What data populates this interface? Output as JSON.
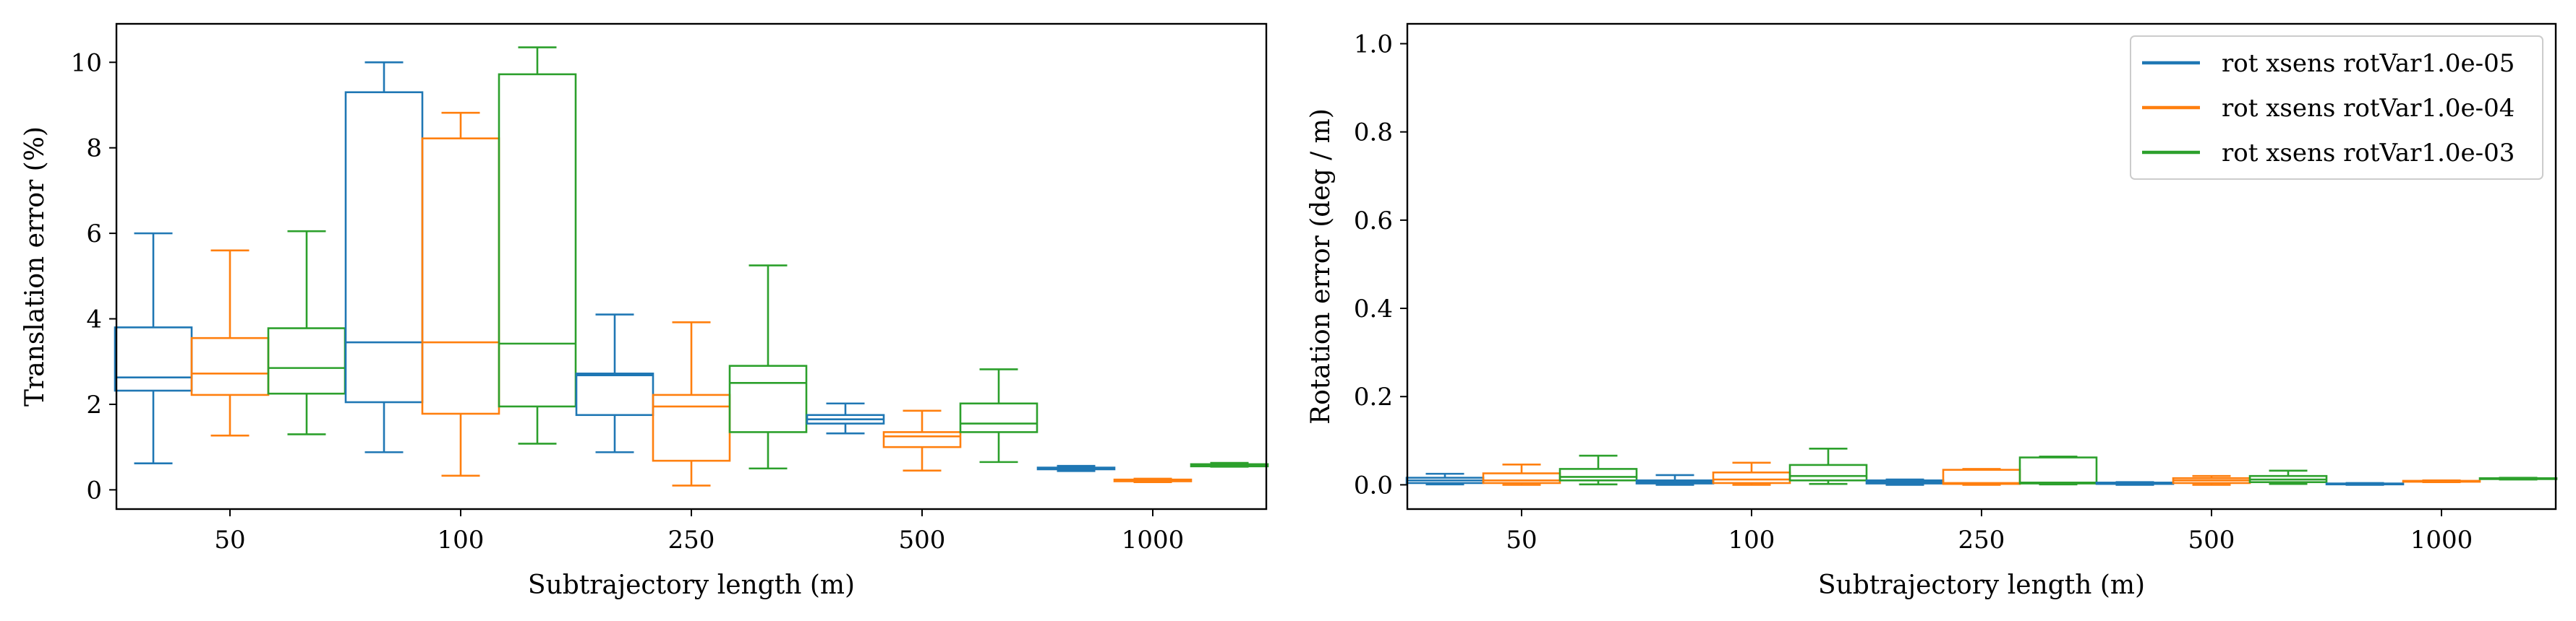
{
  "colors": {
    "series": [
      "#1f77b4",
      "#ff7f0e",
      "#2ca02c"
    ],
    "axis": "#000000",
    "background": "#ffffff"
  },
  "chart_data": [
    {
      "type": "box",
      "xlabel": "Subtrajectory length (m)",
      "ylabel": "Translation error (%)",
      "ylim": [
        -0.45,
        10.9
      ],
      "yticks": [
        0,
        2,
        4,
        6,
        8,
        10
      ],
      "categories": [
        "50",
        "100",
        "250",
        "500",
        "1000"
      ],
      "grid": false,
      "legend": "none",
      "series": [
        {
          "name": "rot xsens rotVar1.0e-05",
          "boxes": [
            {
              "whislo": 0.62,
              "q1": 2.32,
              "med": 2.63,
              "q3": 3.8,
              "whishi": 6.0
            },
            {
              "whislo": 0.88,
              "q1": 2.05,
              "med": 3.45,
              "q3": 9.3,
              "whishi": 10.0
            },
            {
              "whislo": 0.88,
              "q1": 1.75,
              "med": 2.68,
              "q3": 2.72,
              "whishi": 4.1
            },
            {
              "whislo": 1.32,
              "q1": 1.55,
              "med": 1.65,
              "q3": 1.75,
              "whishi": 2.02
            },
            {
              "whislo": 0.44,
              "q1": 0.48,
              "med": 0.5,
              "q3": 0.52,
              "whishi": 0.56
            }
          ]
        },
        {
          "name": "rot xsens rotVar1.0e-04",
          "boxes": [
            {
              "whislo": 1.27,
              "q1": 2.22,
              "med": 2.72,
              "q3": 3.55,
              "whishi": 5.6
            },
            {
              "whislo": 0.33,
              "q1": 1.78,
              "med": 3.45,
              "q3": 8.22,
              "whishi": 8.82
            },
            {
              "whislo": 0.1,
              "q1": 0.68,
              "med": 1.95,
              "q3": 2.22,
              "whishi": 3.92
            },
            {
              "whislo": 0.45,
              "q1": 1.0,
              "med": 1.25,
              "q3": 1.35,
              "whishi": 1.85
            },
            {
              "whislo": 0.18,
              "q1": 0.2,
              "med": 0.22,
              "q3": 0.24,
              "whishi": 0.26
            }
          ]
        },
        {
          "name": "rot xsens rotVar1.0e-03",
          "boxes": [
            {
              "whislo": 1.3,
              "q1": 2.25,
              "med": 2.85,
              "q3": 3.78,
              "whishi": 6.05
            },
            {
              "whislo": 1.08,
              "q1": 1.95,
              "med": 3.42,
              "q3": 9.72,
              "whishi": 10.35
            },
            {
              "whislo": 0.5,
              "q1": 1.35,
              "med": 2.5,
              "q3": 2.9,
              "whishi": 5.25
            },
            {
              "whislo": 0.65,
              "q1": 1.35,
              "med": 1.55,
              "q3": 2.02,
              "whishi": 2.82
            },
            {
              "whislo": 0.54,
              "q1": 0.55,
              "med": 0.57,
              "q3": 0.6,
              "whishi": 0.63
            }
          ]
        }
      ]
    },
    {
      "type": "box",
      "xlabel": "Subtrajectory length (m)",
      "ylabel": "Rotation error (deg / m)",
      "ylim": [
        -0.055,
        1.045
      ],
      "yticks": [
        0.0,
        0.2,
        0.4,
        0.6,
        0.8,
        1.0
      ],
      "ytick_labels": [
        "0.0",
        "0.2",
        "0.4",
        "0.6",
        "0.8",
        "1.0"
      ],
      "categories": [
        "50",
        "100",
        "250",
        "500",
        "1000"
      ],
      "grid": false,
      "legend": "top-right",
      "series": [
        {
          "name": "rot xsens rotVar1.0e-05",
          "boxes": [
            {
              "whislo": 0.001,
              "q1": 0.004,
              "med": 0.01,
              "q3": 0.016,
              "whishi": 0.025
            },
            {
              "whislo": 0.0,
              "q1": 0.003,
              "med": 0.006,
              "q3": 0.01,
              "whishi": 0.022
            },
            {
              "whislo": 0.0,
              "q1": 0.003,
              "med": 0.006,
              "q3": 0.01,
              "whishi": 0.012
            },
            {
              "whislo": 0.0,
              "q1": 0.002,
              "med": 0.003,
              "q3": 0.005,
              "whishi": 0.006
            },
            {
              "whislo": 0.0,
              "q1": 0.001,
              "med": 0.002,
              "q3": 0.003,
              "whishi": 0.004
            }
          ]
        },
        {
          "name": "rot xsens rotVar1.0e-04",
          "boxes": [
            {
              "whislo": 0.0,
              "q1": 0.004,
              "med": 0.01,
              "q3": 0.026,
              "whishi": 0.046
            },
            {
              "whislo": 0.0,
              "q1": 0.004,
              "med": 0.012,
              "q3": 0.028,
              "whishi": 0.05
            },
            {
              "whislo": 0.0,
              "q1": 0.002,
              "med": 0.004,
              "q3": 0.034,
              "whishi": 0.036
            },
            {
              "whislo": 0.0,
              "q1": 0.004,
              "med": 0.01,
              "q3": 0.015,
              "whishi": 0.02
            },
            {
              "whislo": 0.006,
              "q1": 0.007,
              "med": 0.008,
              "q3": 0.009,
              "whishi": 0.01
            }
          ]
        },
        {
          "name": "rot xsens rotVar1.0e-03",
          "boxes": [
            {
              "whislo": 0.001,
              "q1": 0.01,
              "med": 0.018,
              "q3": 0.036,
              "whishi": 0.066
            },
            {
              "whislo": 0.002,
              "q1": 0.01,
              "med": 0.02,
              "q3": 0.045,
              "whishi": 0.082
            },
            {
              "whislo": 0.001,
              "q1": 0.003,
              "med": 0.005,
              "q3": 0.062,
              "whishi": 0.064
            },
            {
              "whislo": 0.002,
              "q1": 0.006,
              "med": 0.012,
              "q3": 0.02,
              "whishi": 0.032
            },
            {
              "whislo": 0.012,
              "q1": 0.013,
              "med": 0.014,
              "q3": 0.015,
              "whishi": 0.016
            }
          ]
        }
      ]
    }
  ]
}
